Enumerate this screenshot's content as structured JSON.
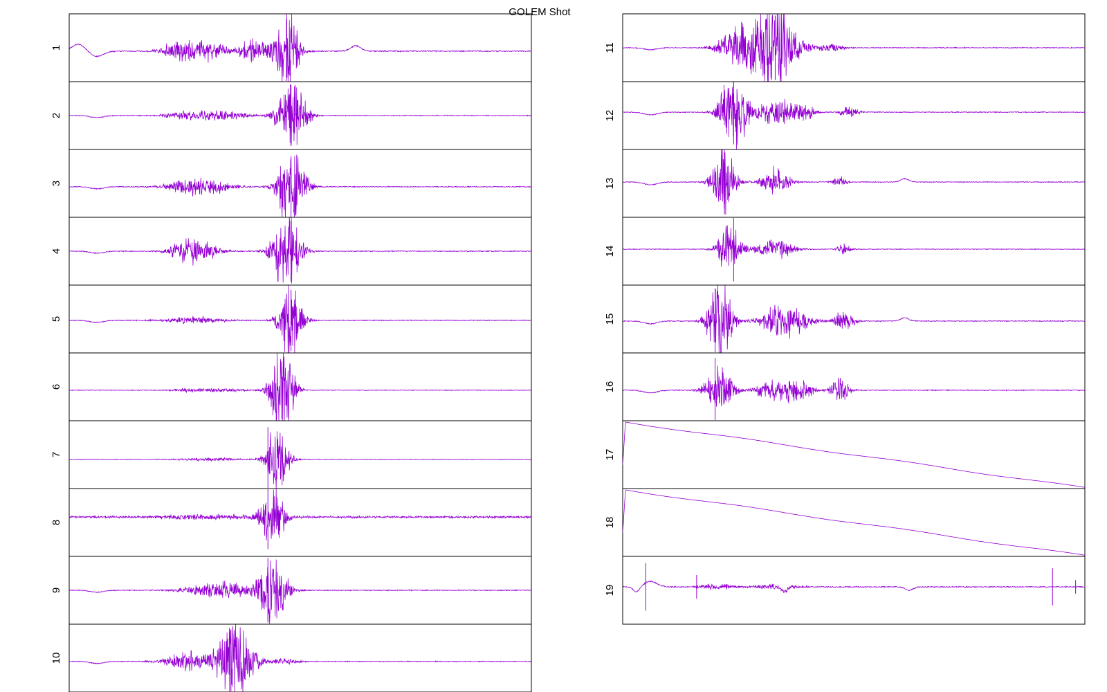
{
  "chart_data": {
    "type": "line",
    "title": "GOLEM Shot",
    "xlabel": "",
    "ylabel": "",
    "grid": false,
    "legend": "none",
    "trace_color": "#9400D3",
    "axis_color": "#000000",
    "columns": 2,
    "panels": [
      {
        "label": "1",
        "shape": "envelope",
        "baseline": 0.55,
        "noise": 0.01,
        "seed": 11,
        "bursts": [
          {
            "c": 0.27,
            "w": 0.07,
            "a": 0.18,
            "flat": true
          },
          {
            "c": 0.4,
            "w": 0.03,
            "a": 0.25
          },
          {
            "c": 0.47,
            "w": 0.025,
            "a": 0.85
          }
        ],
        "wiggles": [
          {
            "c": 0.02,
            "w": 0.02,
            "a": -0.1
          },
          {
            "c": 0.06,
            "w": 0.02,
            "a": 0.08
          },
          {
            "c": 0.62,
            "w": 0.015,
            "a": -0.08
          }
        ],
        "spikes": [
          {
            "c": 0.47,
            "a": 0.95
          }
        ]
      },
      {
        "label": "2",
        "shape": "envelope",
        "baseline": 0.5,
        "noise": 0.008,
        "seed": 12,
        "bursts": [
          {
            "c": 0.3,
            "w": 0.09,
            "a": 0.08,
            "flat": true
          },
          {
            "c": 0.48,
            "w": 0.03,
            "a": 0.75
          }
        ],
        "wiggles": [
          {
            "c": 0.06,
            "w": 0.02,
            "a": 0.03
          }
        ],
        "spikes": [
          {
            "c": 0.48,
            "a": 0.9
          }
        ]
      },
      {
        "label": "3",
        "shape": "envelope",
        "baseline": 0.55,
        "noise": 0.008,
        "seed": 13,
        "bursts": [
          {
            "c": 0.28,
            "w": 0.06,
            "a": 0.18
          },
          {
            "c": 0.48,
            "w": 0.03,
            "a": 0.75
          }
        ],
        "wiggles": [
          {
            "c": 0.06,
            "w": 0.02,
            "a": 0.03
          }
        ],
        "spikes": [
          {
            "c": 0.48,
            "a": 0.9
          }
        ]
      },
      {
        "label": "4",
        "shape": "envelope",
        "baseline": 0.5,
        "noise": 0.008,
        "seed": 14,
        "bursts": [
          {
            "c": 0.27,
            "w": 0.045,
            "a": 0.28
          },
          {
            "c": 0.47,
            "w": 0.03,
            "a": 0.75
          }
        ],
        "wiggles": [
          {
            "c": 0.06,
            "w": 0.02,
            "a": 0.03
          }
        ],
        "spikes": [
          {
            "c": 0.48,
            "a": 0.9
          }
        ]
      },
      {
        "label": "5",
        "shape": "envelope",
        "baseline": 0.52,
        "noise": 0.008,
        "seed": 15,
        "bursts": [
          {
            "c": 0.27,
            "w": 0.06,
            "a": 0.06
          },
          {
            "c": 0.48,
            "w": 0.025,
            "a": 0.7
          }
        ],
        "wiggles": [
          {
            "c": 0.06,
            "w": 0.02,
            "a": 0.03
          }
        ],
        "spikes": [
          {
            "c": 0.48,
            "a": 0.9
          }
        ]
      },
      {
        "label": "6",
        "shape": "envelope",
        "baseline": 0.55,
        "noise": 0.006,
        "seed": 16,
        "bursts": [
          {
            "c": 0.3,
            "w": 0.08,
            "a": 0.03,
            "flat": true
          },
          {
            "c": 0.46,
            "w": 0.025,
            "a": 0.8
          }
        ],
        "wiggles": [],
        "spikes": [
          {
            "c": 0.46,
            "a": 0.85
          }
        ]
      },
      {
        "label": "7",
        "shape": "envelope",
        "baseline": 0.57,
        "noise": 0.006,
        "seed": 17,
        "bursts": [
          {
            "c": 0.3,
            "w": 0.06,
            "a": 0.03
          },
          {
            "c": 0.45,
            "w": 0.025,
            "a": 0.55
          }
        ],
        "wiggles": [],
        "spikes": [
          {
            "c": 0.43,
            "a": 0.95
          }
        ]
      },
      {
        "label": "8",
        "shape": "envelope",
        "baseline": 0.42,
        "noise": 0.02,
        "seed": 18,
        "bursts": [
          {
            "c": 0.3,
            "w": 0.1,
            "a": 0.03,
            "flat": true
          },
          {
            "c": 0.44,
            "w": 0.025,
            "a": 0.55
          }
        ],
        "wiggles": [],
        "spikes": [
          {
            "c": 0.43,
            "a": 0.95
          }
        ]
      },
      {
        "label": "9",
        "shape": "envelope",
        "baseline": 0.5,
        "noise": 0.008,
        "seed": 19,
        "bursts": [
          {
            "c": 0.33,
            "w": 0.07,
            "a": 0.15
          },
          {
            "c": 0.44,
            "w": 0.03,
            "a": 0.65
          }
        ],
        "wiggles": [
          {
            "c": 0.06,
            "w": 0.02,
            "a": 0.03
          }
        ],
        "spikes": [
          {
            "c": 0.43,
            "a": 0.95
          }
        ]
      },
      {
        "label": "10",
        "shape": "envelope",
        "baseline": 0.55,
        "noise": 0.008,
        "seed": 20,
        "bursts": [
          {
            "c": 0.26,
            "w": 0.05,
            "a": 0.18
          },
          {
            "c": 0.36,
            "w": 0.035,
            "a": 0.8
          },
          {
            "c": 0.46,
            "w": 0.035,
            "a": 0.05
          }
        ],
        "wiggles": [
          {
            "c": 0.06,
            "w": 0.02,
            "a": 0.03
          }
        ],
        "spikes": [
          {
            "c": 0.35,
            "a": 0.95
          }
        ]
      },
      {
        "label": "11",
        "shape": "envelope",
        "baseline": 0.5,
        "noise": 0.008,
        "seed": 21,
        "bursts": [
          {
            "c": 0.25,
            "w": 0.04,
            "a": 0.4
          },
          {
            "c": 0.33,
            "w": 0.045,
            "a": 0.85
          },
          {
            "c": 0.45,
            "w": 0.03,
            "a": 0.06
          }
        ],
        "wiggles": [
          {
            "c": 0.06,
            "w": 0.02,
            "a": 0.03
          }
        ],
        "spikes": [
          {
            "c": 0.33,
            "a": 0.95
          }
        ]
      },
      {
        "label": "12",
        "shape": "envelope",
        "baseline": 0.45,
        "noise": 0.008,
        "seed": 22,
        "bursts": [
          {
            "c": 0.24,
            "w": 0.03,
            "a": 0.75
          },
          {
            "c": 0.35,
            "w": 0.06,
            "a": 0.22,
            "flat": true
          },
          {
            "c": 0.49,
            "w": 0.02,
            "a": 0.1
          }
        ],
        "wiggles": [
          {
            "c": 0.06,
            "w": 0.02,
            "a": 0.04
          }
        ],
        "spikes": [
          {
            "c": 0.24,
            "a": 0.95
          }
        ]
      },
      {
        "label": "13",
        "shape": "envelope",
        "baseline": 0.48,
        "noise": 0.008,
        "seed": 23,
        "bursts": [
          {
            "c": 0.22,
            "w": 0.025,
            "a": 0.6
          },
          {
            "c": 0.33,
            "w": 0.03,
            "a": 0.25
          },
          {
            "c": 0.47,
            "w": 0.015,
            "a": 0.1
          }
        ],
        "wiggles": [
          {
            "c": 0.06,
            "w": 0.02,
            "a": 0.04
          },
          {
            "c": 0.61,
            "w": 0.012,
            "a": -0.05
          }
        ],
        "spikes": [
          {
            "c": 0.22,
            "a": 0.95
          }
        ]
      },
      {
        "label": "14",
        "shape": "envelope",
        "baseline": 0.47,
        "noise": 0.006,
        "seed": 24,
        "bursts": [
          {
            "c": 0.23,
            "w": 0.025,
            "a": 0.45
          },
          {
            "c": 0.33,
            "w": 0.04,
            "a": 0.18
          },
          {
            "c": 0.48,
            "w": 0.015,
            "a": 0.1
          }
        ],
        "wiggles": [],
        "spikes": [
          {
            "c": 0.24,
            "a": 0.95
          }
        ]
      },
      {
        "label": "15",
        "shape": "envelope",
        "baseline": 0.53,
        "noise": 0.008,
        "seed": 25,
        "bursts": [
          {
            "c": 0.21,
            "w": 0.025,
            "a": 0.85
          },
          {
            "c": 0.35,
            "w": 0.05,
            "a": 0.3
          },
          {
            "c": 0.48,
            "w": 0.02,
            "a": 0.2
          }
        ],
        "wiggles": [
          {
            "c": 0.06,
            "w": 0.02,
            "a": 0.04
          },
          {
            "c": 0.61,
            "w": 0.012,
            "a": -0.05
          }
        ],
        "spikes": [
          {
            "c": 0.2,
            "a": 0.95
          }
        ]
      },
      {
        "label": "16",
        "shape": "envelope",
        "baseline": 0.55,
        "noise": 0.008,
        "seed": 26,
        "bursts": [
          {
            "c": 0.21,
            "w": 0.03,
            "a": 0.4
          },
          {
            "c": 0.35,
            "w": 0.06,
            "a": 0.2,
            "flat": true
          },
          {
            "c": 0.47,
            "w": 0.02,
            "a": 0.22
          }
        ],
        "wiggles": [
          {
            "c": 0.06,
            "w": 0.02,
            "a": 0.04
          }
        ],
        "spikes": [
          {
            "c": 0.2,
            "a": 0.95
          }
        ]
      },
      {
        "label": "17",
        "shape": "ramp",
        "noise": 0.002,
        "seed": 27,
        "start": 0.65,
        "peak": 0.02,
        "end": 0.99
      },
      {
        "label": "18",
        "shape": "ramp",
        "noise": 0.002,
        "seed": 28,
        "start": 0.65,
        "peak": 0.02,
        "end": 0.99
      },
      {
        "label": "19",
        "shape": "envelope",
        "baseline": 0.45,
        "noise": 0.01,
        "seed": 29,
        "bursts": [
          {
            "c": 0.2,
            "w": 0.04,
            "a": 0.04,
            "flat": true
          },
          {
            "c": 0.33,
            "w": 0.05,
            "a": 0.04
          }
        ],
        "wiggles": [
          {
            "c": 0.03,
            "w": 0.01,
            "a": 0.08
          },
          {
            "c": 0.06,
            "w": 0.02,
            "a": -0.08
          },
          {
            "c": 0.35,
            "w": 0.01,
            "a": 0.06
          },
          {
            "c": 0.62,
            "w": 0.012,
            "a": 0.05
          }
        ],
        "spikes": [
          {
            "c": 0.05,
            "a": 0.7
          },
          {
            "c": 0.16,
            "a": 0.35
          },
          {
            "c": 0.93,
            "a": 0.55
          },
          {
            "c": 0.98,
            "a": 0.2
          }
        ]
      }
    ]
  }
}
